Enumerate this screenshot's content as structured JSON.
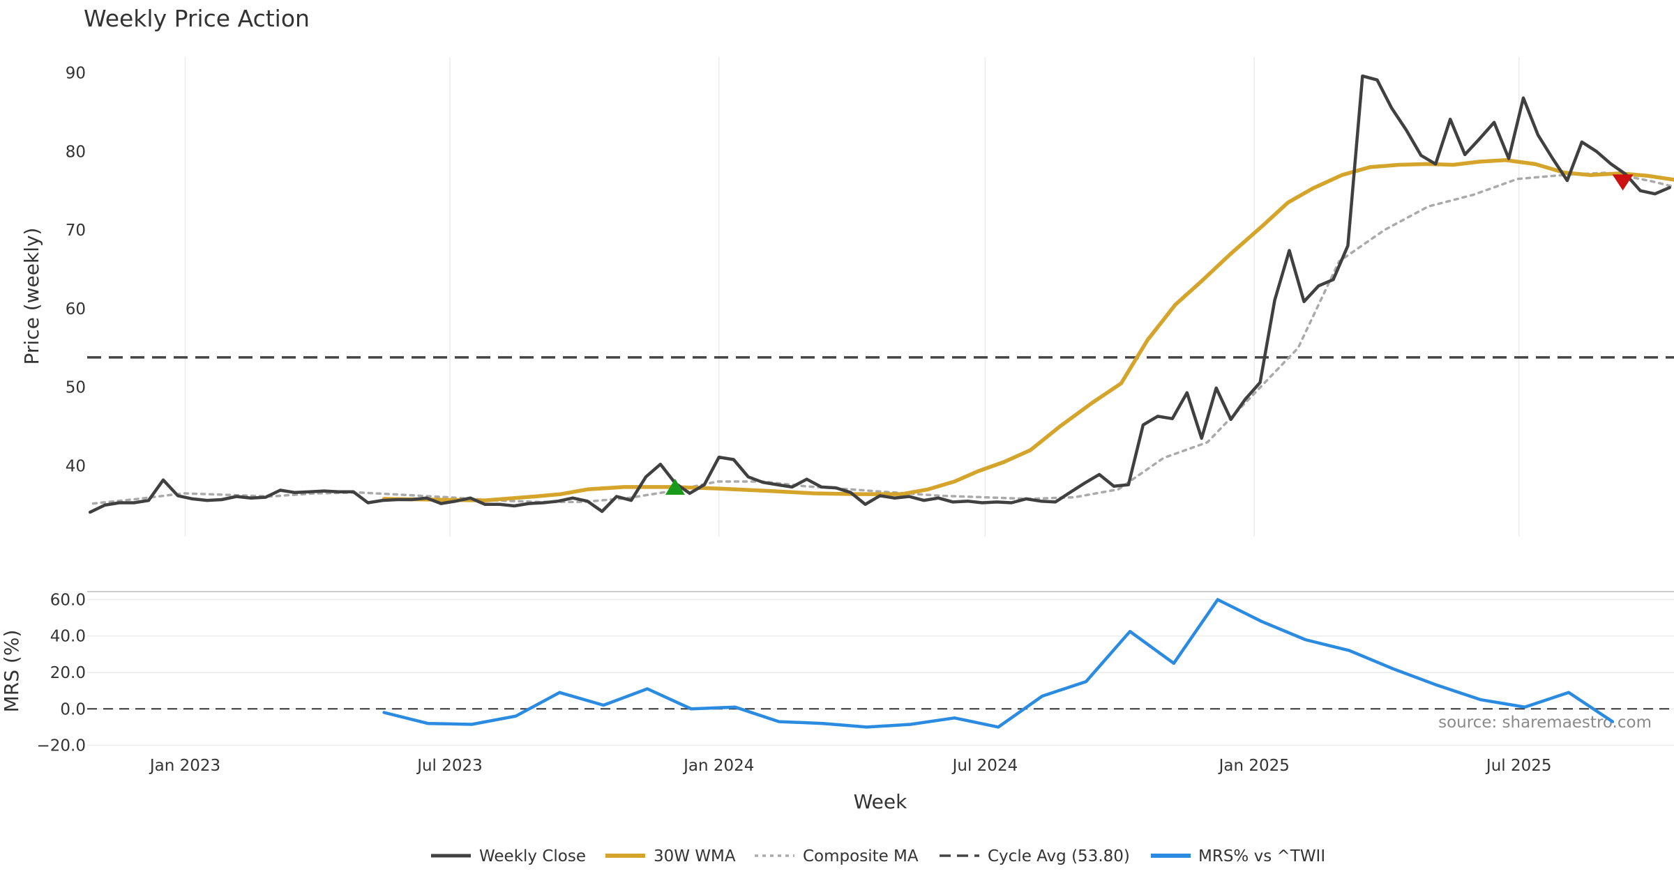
{
  "chart_data": {
    "type": "line",
    "title": "Weekly Price Action",
    "xlabel": "Week",
    "x_ticks": [
      "Jan 2023",
      "Jul 2023",
      "Jan 2024",
      "Jul 2024",
      "Jan 2025",
      "Jul 2025"
    ],
    "x_tick_dates": [
      "2023-01-01",
      "2023-07-01",
      "2024-01-01",
      "2024-07-01",
      "2025-01-01",
      "2025-07-01"
    ],
    "x_range": [
      "2022-10-26",
      "2025-10-15"
    ],
    "grid": true,
    "legend_position": "bottom-center",
    "source_note": "source: sharemaestro.com",
    "panels": {
      "price": {
        "ylabel": "Price (weekly)",
        "ylim": [
          31,
          92
        ],
        "y_ticks": [
          40,
          50,
          60,
          70,
          80,
          90
        ],
        "y_tick_labels": [
          "40",
          "50",
          "60",
          "70",
          "80",
          "90"
        ]
      },
      "mrs": {
        "ylabel": "MRS (%)",
        "ylim": [
          -24,
          64
        ],
        "y_ticks": [
          -20,
          0,
          20,
          40,
          60
        ],
        "y_tick_labels": [
          "−20.0",
          "0.0",
          "20.0",
          "40.0",
          "60.0"
        ]
      }
    },
    "legend": [
      "Weekly Close",
      "30W WMA",
      "Composite MA",
      "Cycle Avg (53.80)",
      "MRS% vs ^TWII"
    ],
    "colors": {
      "close": "#404040",
      "wma": "#d4a52a",
      "composite": "#aaaaaa",
      "cycle": "#444444",
      "mrs": "#2a8be0",
      "buy": "#1a9a1a",
      "sell": "#cc1111"
    },
    "cycle_avg": 53.8,
    "series": [
      {
        "name": "Weekly Close",
        "panel": "price",
        "points": [
          [
            "2022-10-28",
            34.1
          ],
          [
            "2022-11-07",
            35.0
          ],
          [
            "2022-11-17",
            35.3
          ],
          [
            "2022-11-27",
            35.3
          ],
          [
            "2022-12-07",
            35.6
          ],
          [
            "2022-12-17",
            38.2
          ],
          [
            "2022-12-27",
            36.2
          ],
          [
            "2023-01-06",
            35.8
          ],
          [
            "2023-01-16",
            35.6
          ],
          [
            "2023-01-26",
            35.7
          ],
          [
            "2023-02-05",
            36.1
          ],
          [
            "2023-02-15",
            35.9
          ],
          [
            "2023-02-25",
            36.0
          ],
          [
            "2023-03-07",
            36.9
          ],
          [
            "2023-03-17",
            36.6
          ],
          [
            "2023-03-27",
            36.7
          ],
          [
            "2023-04-06",
            36.8
          ],
          [
            "2023-04-16",
            36.7
          ],
          [
            "2023-04-26",
            36.7
          ],
          [
            "2023-05-06",
            35.3
          ],
          [
            "2023-05-16",
            35.6
          ],
          [
            "2023-05-26",
            35.7
          ],
          [
            "2023-06-05",
            35.7
          ],
          [
            "2023-06-15",
            35.9
          ],
          [
            "2023-06-25",
            35.2
          ],
          [
            "2023-07-05",
            35.5
          ],
          [
            "2023-07-15",
            35.9
          ],
          [
            "2023-07-25",
            35.1
          ],
          [
            "2023-08-04",
            35.1
          ],
          [
            "2023-08-14",
            34.9
          ],
          [
            "2023-08-24",
            35.2
          ],
          [
            "2023-09-03",
            35.3
          ],
          [
            "2023-09-13",
            35.5
          ],
          [
            "2023-09-23",
            35.9
          ],
          [
            "2023-10-03",
            35.5
          ],
          [
            "2023-10-13",
            34.2
          ],
          [
            "2023-10-23",
            36.1
          ],
          [
            "2023-11-02",
            35.6
          ],
          [
            "2023-11-12",
            38.6
          ],
          [
            "2023-11-22",
            40.2
          ],
          [
            "2023-12-02",
            37.8
          ],
          [
            "2023-12-12",
            36.5
          ],
          [
            "2023-12-22",
            37.6
          ],
          [
            "2024-01-01",
            41.1
          ],
          [
            "2024-01-11",
            40.8
          ],
          [
            "2024-01-21",
            38.6
          ],
          [
            "2024-01-31",
            37.9
          ],
          [
            "2024-02-10",
            37.6
          ],
          [
            "2024-02-20",
            37.3
          ],
          [
            "2024-03-01",
            38.3
          ],
          [
            "2024-03-11",
            37.3
          ],
          [
            "2024-03-21",
            37.2
          ],
          [
            "2024-03-31",
            36.6
          ],
          [
            "2024-04-10",
            35.1
          ],
          [
            "2024-04-20",
            36.2
          ],
          [
            "2024-04-30",
            35.9
          ],
          [
            "2024-05-10",
            36.1
          ],
          [
            "2024-05-20",
            35.6
          ],
          [
            "2024-05-30",
            35.9
          ],
          [
            "2024-06-09",
            35.4
          ],
          [
            "2024-06-19",
            35.5
          ],
          [
            "2024-06-29",
            35.3
          ],
          [
            "2024-07-09",
            35.4
          ],
          [
            "2024-07-19",
            35.3
          ],
          [
            "2024-07-29",
            35.8
          ],
          [
            "2024-08-08",
            35.5
          ],
          [
            "2024-08-18",
            35.4
          ],
          [
            "2024-08-28",
            36.6
          ],
          [
            "2024-09-07",
            37.8
          ],
          [
            "2024-09-17",
            38.9
          ],
          [
            "2024-09-27",
            37.4
          ],
          [
            "2024-10-07",
            37.6
          ],
          [
            "2024-10-17",
            45.2
          ],
          [
            "2024-10-27",
            46.3
          ],
          [
            "2024-11-06",
            46.0
          ],
          [
            "2024-11-16",
            49.3
          ],
          [
            "2024-11-26",
            43.5
          ],
          [
            "2024-12-06",
            49.9
          ],
          [
            "2024-12-16",
            45.9
          ],
          [
            "2024-12-26",
            48.5
          ],
          [
            "2025-01-05",
            50.6
          ],
          [
            "2025-01-15",
            61.1
          ],
          [
            "2025-01-25",
            67.4
          ],
          [
            "2025-02-04",
            60.9
          ],
          [
            "2025-02-14",
            62.9
          ],
          [
            "2025-02-24",
            63.7
          ],
          [
            "2025-03-06",
            68.0
          ],
          [
            "2025-03-16",
            89.6
          ],
          [
            "2025-03-26",
            89.1
          ],
          [
            "2025-04-05",
            85.5
          ],
          [
            "2025-04-15",
            82.7
          ],
          [
            "2025-04-25",
            79.5
          ],
          [
            "2025-05-05",
            78.4
          ],
          [
            "2025-05-15",
            84.1
          ],
          [
            "2025-05-25",
            79.6
          ],
          [
            "2025-06-04",
            81.6
          ],
          [
            "2025-06-14",
            83.7
          ],
          [
            "2025-06-24",
            79.1
          ],
          [
            "2025-07-04",
            86.8
          ],
          [
            "2025-07-14",
            82.1
          ],
          [
            "2025-07-24",
            79.1
          ],
          [
            "2025-08-03",
            76.3
          ],
          [
            "2025-08-13",
            81.2
          ],
          [
            "2025-08-23",
            80.0
          ],
          [
            "2025-09-02",
            78.4
          ],
          [
            "2025-09-12",
            77.1
          ],
          [
            "2025-09-22",
            75.0
          ],
          [
            "2025-10-02",
            74.6
          ],
          [
            "2025-10-12",
            75.4
          ]
        ]
      },
      {
        "name": "30W WMA",
        "panel": "price",
        "points": [
          [
            "2023-05-17",
            35.8
          ],
          [
            "2023-06-20",
            35.7
          ],
          [
            "2023-07-25",
            35.6
          ],
          [
            "2023-08-28",
            36.1
          ],
          [
            "2023-09-15",
            36.4
          ],
          [
            "2023-10-03",
            37.0
          ],
          [
            "2023-10-28",
            37.3
          ],
          [
            "2023-11-30",
            37.3
          ],
          [
            "2024-01-02",
            37.1
          ],
          [
            "2024-02-05",
            36.8
          ],
          [
            "2024-03-06",
            36.5
          ],
          [
            "2024-04-03",
            36.4
          ],
          [
            "2024-05-05",
            36.4
          ],
          [
            "2024-05-23",
            37.0
          ],
          [
            "2024-06-10",
            38.0
          ],
          [
            "2024-06-26",
            39.3
          ],
          [
            "2024-07-14",
            40.5
          ],
          [
            "2024-08-01",
            42.0
          ],
          [
            "2024-08-21",
            45.0
          ],
          [
            "2024-09-12",
            48.0
          ],
          [
            "2024-10-02",
            50.5
          ],
          [
            "2024-10-20",
            56.0
          ],
          [
            "2024-11-08",
            60.5
          ],
          [
            "2024-11-26",
            63.5
          ],
          [
            "2024-12-16",
            67.0
          ],
          [
            "2025-01-07",
            70.6
          ],
          [
            "2025-01-24",
            73.5
          ],
          [
            "2025-02-10",
            75.3
          ],
          [
            "2025-03-02",
            77.0
          ],
          [
            "2025-03-21",
            78.0
          ],
          [
            "2025-04-10",
            78.3
          ],
          [
            "2025-04-29",
            78.4
          ],
          [
            "2025-05-17",
            78.3
          ],
          [
            "2025-06-04",
            78.7
          ],
          [
            "2025-06-22",
            78.9
          ],
          [
            "2025-07-12",
            78.4
          ],
          [
            "2025-08-01",
            77.3
          ],
          [
            "2025-08-19",
            77.0
          ],
          [
            "2025-09-08",
            77.2
          ],
          [
            "2025-09-27",
            76.9
          ],
          [
            "2025-10-15",
            76.4
          ]
        ]
      },
      {
        "name": "Composite MA",
        "panel": "price",
        "points": [
          [
            "2022-10-30",
            35.2
          ],
          [
            "2022-11-30",
            35.8
          ],
          [
            "2022-12-31",
            36.5
          ],
          [
            "2023-01-31",
            36.3
          ],
          [
            "2023-02-28",
            36.1
          ],
          [
            "2023-03-31",
            36.5
          ],
          [
            "2023-04-30",
            36.6
          ],
          [
            "2023-05-31",
            36.3
          ],
          [
            "2023-06-30",
            36.0
          ],
          [
            "2023-07-31",
            35.6
          ],
          [
            "2023-08-31",
            35.4
          ],
          [
            "2023-09-30",
            35.4
          ],
          [
            "2023-10-31",
            35.9
          ],
          [
            "2023-11-30",
            36.8
          ],
          [
            "2023-12-31",
            38.0
          ],
          [
            "2024-01-31",
            38.0
          ],
          [
            "2024-02-29",
            37.4
          ],
          [
            "2024-03-31",
            37.0
          ],
          [
            "2024-04-30",
            36.6
          ],
          [
            "2024-05-31",
            36.2
          ],
          [
            "2024-06-30",
            36.0
          ],
          [
            "2024-07-31",
            35.8
          ],
          [
            "2024-08-31",
            36.0
          ],
          [
            "2024-09-30",
            37.0
          ],
          [
            "2024-10-31",
            41.0
          ],
          [
            "2024-11-30",
            43.0
          ],
          [
            "2024-12-31",
            49.0
          ],
          [
            "2025-01-31",
            55.0
          ],
          [
            "2025-02-28",
            66.0
          ],
          [
            "2025-03-31",
            70.0
          ],
          [
            "2025-04-30",
            73.0
          ],
          [
            "2025-05-31",
            74.5
          ],
          [
            "2025-06-30",
            76.5
          ],
          [
            "2025-07-31",
            77.0
          ],
          [
            "2025-08-31",
            77.3
          ],
          [
            "2025-09-30",
            76.2
          ],
          [
            "2025-10-15",
            75.5
          ]
        ]
      },
      {
        "name": "MRS% vs ^TWII",
        "panel": "mrs",
        "points": [
          [
            "2023-05-17",
            -2.0
          ],
          [
            "2023-06-16",
            -8.0
          ],
          [
            "2023-07-16",
            -8.5
          ],
          [
            "2023-08-15",
            -4.0
          ],
          [
            "2023-09-14",
            9.0
          ],
          [
            "2023-10-14",
            2.0
          ],
          [
            "2023-11-13",
            11.0
          ],
          [
            "2023-12-13",
            0.0
          ],
          [
            "2024-01-12",
            1.0
          ],
          [
            "2024-02-11",
            -7.0
          ],
          [
            "2024-03-12",
            -8.0
          ],
          [
            "2024-04-11",
            -10.0
          ],
          [
            "2024-05-11",
            -8.5
          ],
          [
            "2024-06-10",
            -5.0
          ],
          [
            "2024-07-10",
            -10.0
          ],
          [
            "2024-08-09",
            7.0
          ],
          [
            "2024-09-08",
            15.0
          ],
          [
            "2024-10-08",
            42.5
          ],
          [
            "2024-11-07",
            25.0
          ],
          [
            "2024-12-07",
            60.0
          ],
          [
            "2025-01-06",
            48.0
          ],
          [
            "2025-02-05",
            38.0
          ],
          [
            "2025-03-07",
            32.0
          ],
          [
            "2025-04-06",
            22.0
          ],
          [
            "2025-05-06",
            13.0
          ],
          [
            "2025-06-05",
            5.0
          ],
          [
            "2025-07-05",
            1.0
          ],
          [
            "2025-08-04",
            9.0
          ],
          [
            "2025-09-03",
            -7.0
          ]
        ]
      }
    ],
    "markers": [
      {
        "type": "buy",
        "x": "2023-12-02",
        "y": 37.3
      },
      {
        "type": "sell",
        "x": "2025-09-10",
        "y": 76.1
      }
    ]
  }
}
